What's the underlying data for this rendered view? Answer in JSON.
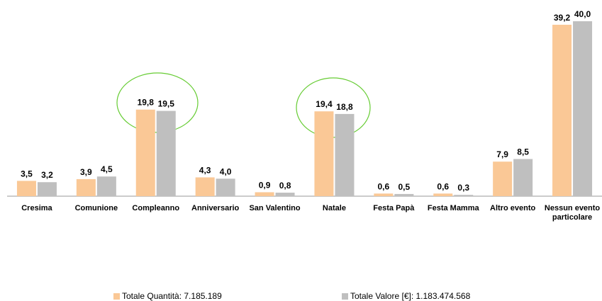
{
  "chart_data": {
    "type": "bar",
    "categories": [
      "Cresima",
      "Comunione",
      "Compleanno",
      "Anniversario",
      "San Valentino",
      "Natale",
      "Festa Papà",
      "Festa Mamma",
      "Altro evento",
      "Nessun evento particolare"
    ],
    "series": [
      {
        "name": "Totale Quantità: 7.185.189",
        "color": "#fac896",
        "values": [
          3.5,
          3.9,
          19.8,
          4.3,
          0.9,
          19.4,
          0.6,
          0.6,
          7.9,
          39.2
        ],
        "value_labels": [
          "3,5",
          "3,9",
          "19,8",
          "4,3",
          "0,9",
          "19,4",
          "0,6",
          "0,6",
          "7,9",
          "39,2"
        ]
      },
      {
        "name": "Totale Valore [€]: 1.183.474.568",
        "color": "#bfbfbf",
        "values": [
          3.2,
          4.5,
          19.5,
          4.0,
          0.8,
          18.8,
          0.5,
          0.3,
          8.5,
          40.0
        ],
        "value_labels": [
          "3,2",
          "4,5",
          "19,5",
          "4,0",
          "0,8",
          "18,8",
          "0,5",
          "0,3",
          "8,5",
          "40,0"
        ]
      }
    ],
    "legend": "bottom"
  }
}
